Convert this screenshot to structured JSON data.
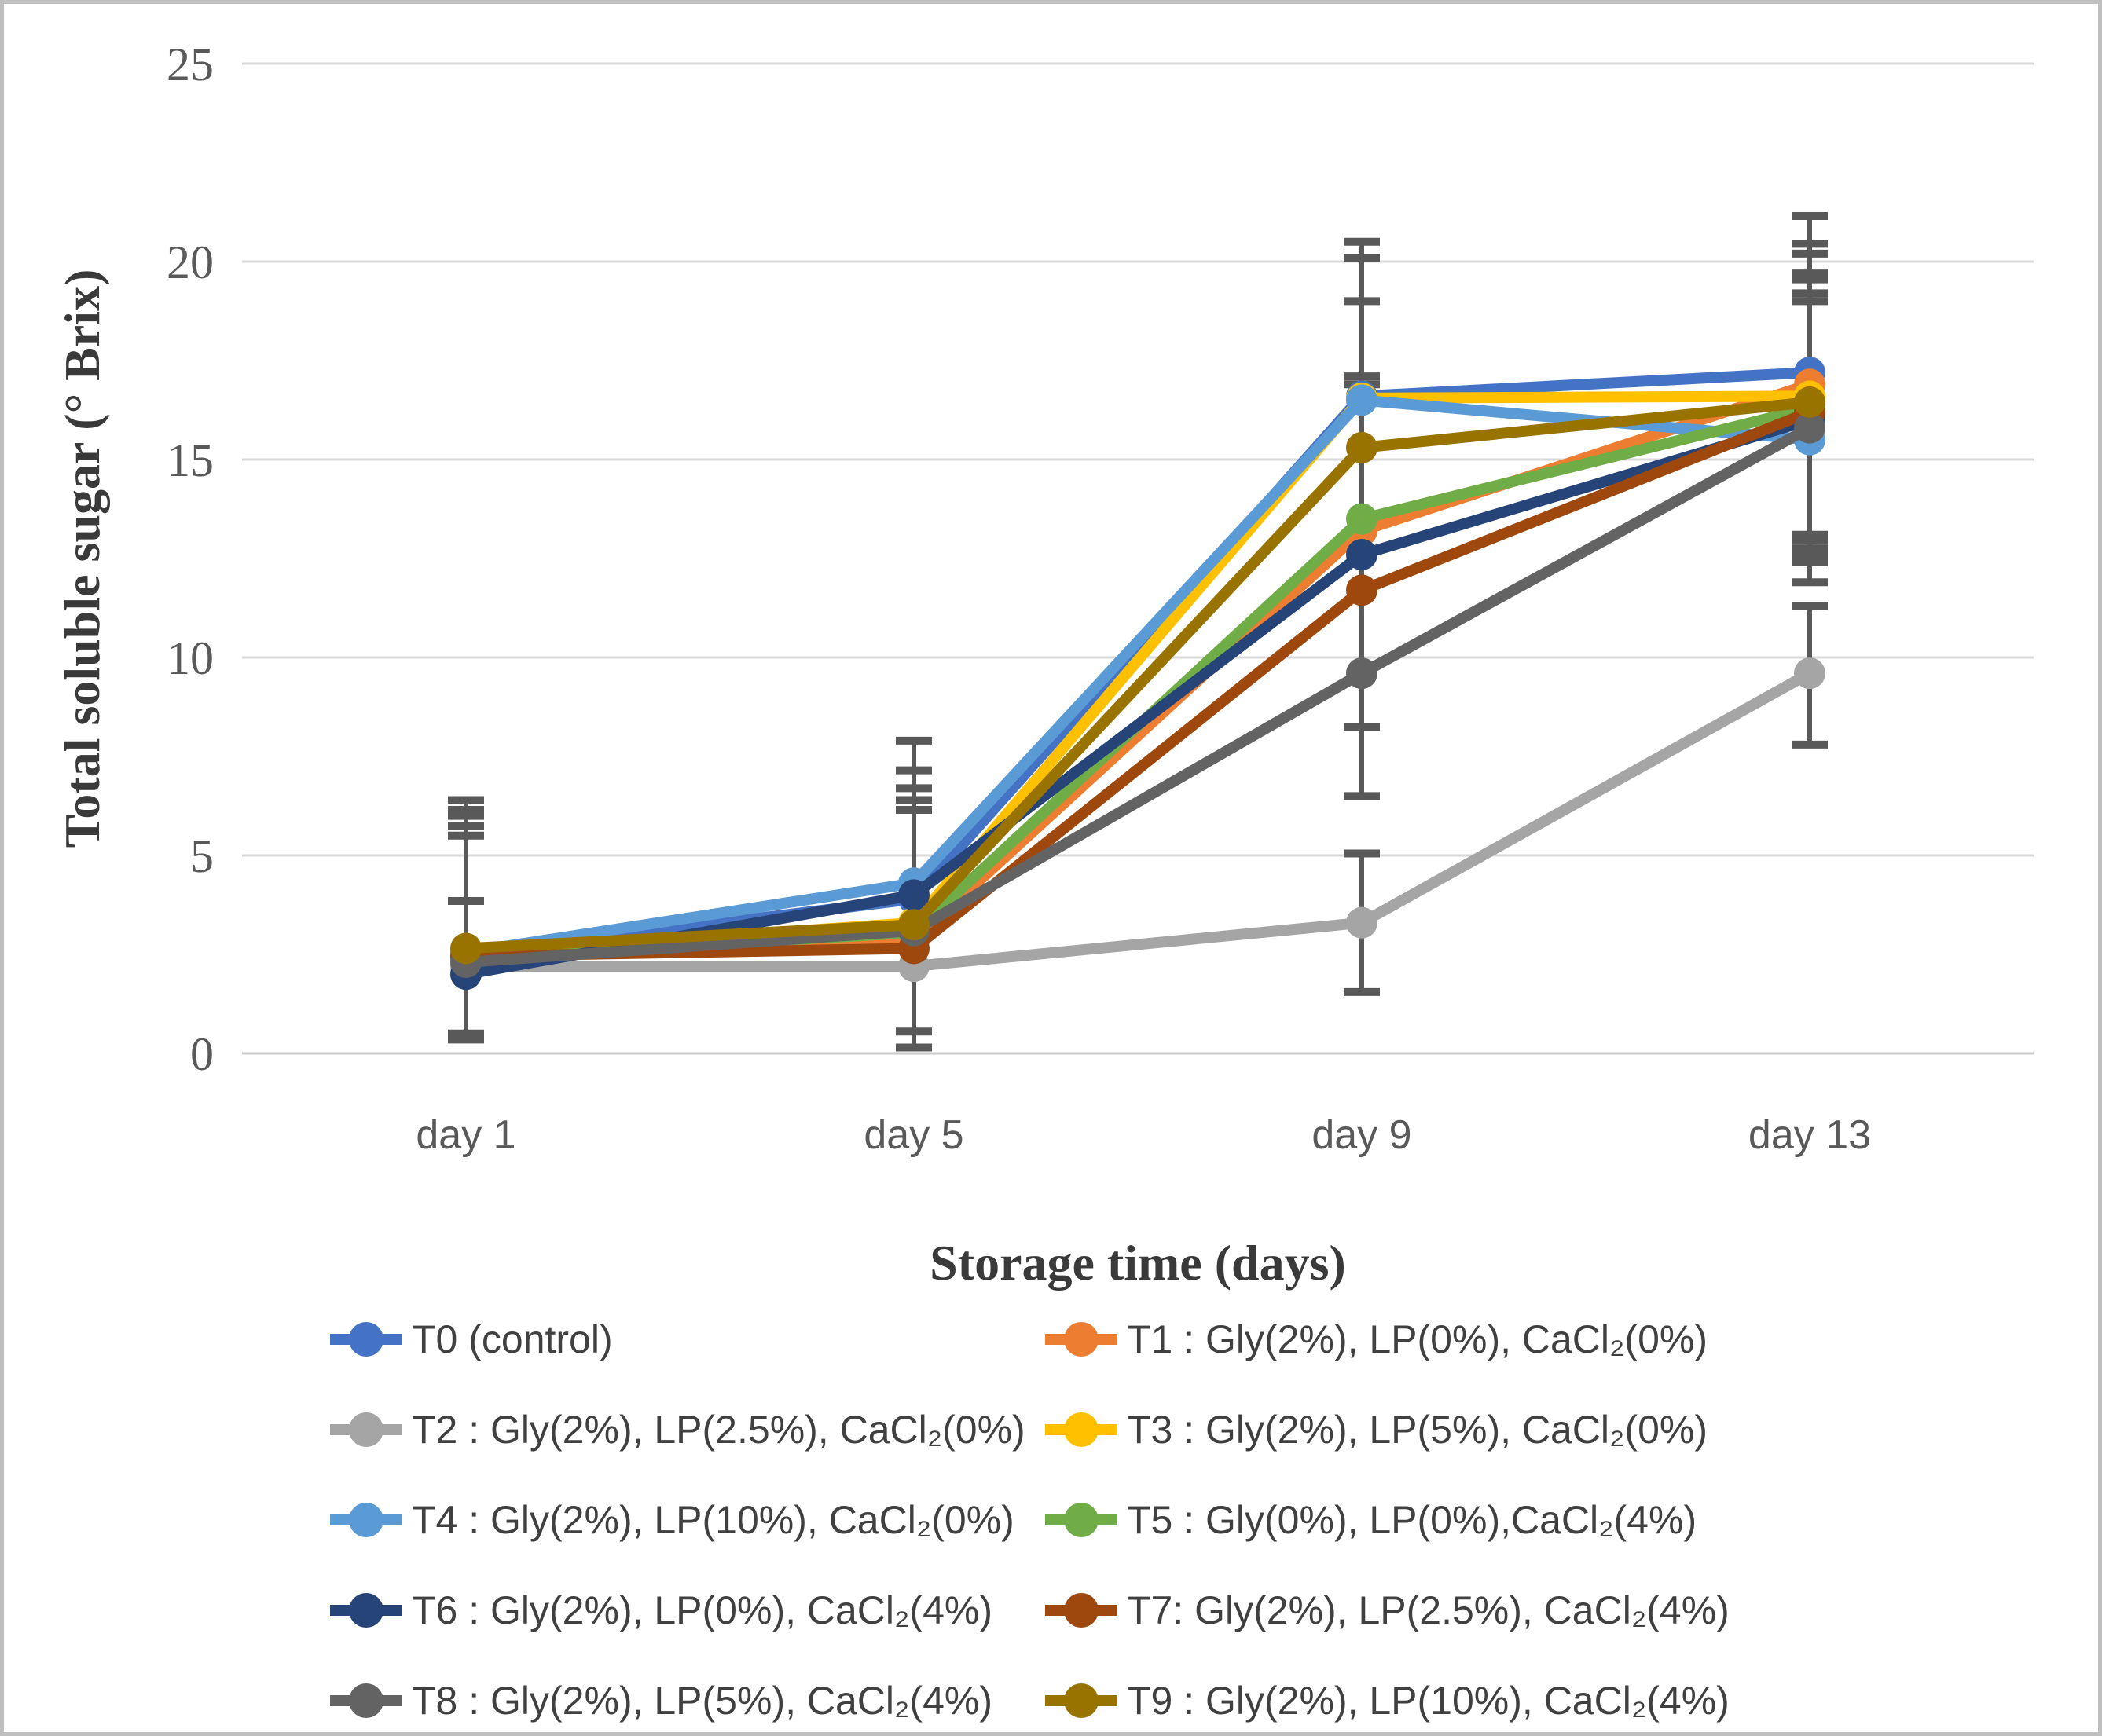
{
  "chart_data": {
    "type": "line",
    "title": "",
    "xlabel": "Storage time (days)",
    "ylabel": "Total soluble sugar (° Brix)",
    "categories": [
      "day 1",
      "day 5",
      "day 9",
      "day 13"
    ],
    "y_ticks": [
      0,
      5,
      10,
      15,
      20,
      25
    ],
    "ylim": [
      0,
      25
    ],
    "grid": true,
    "legend_position": "bottom-two-columns",
    "series": [
      {
        "name": "T0 (control)",
        "color": "#4472C4",
        "values": [
          2.5,
          3.9,
          16.6,
          17.2
        ]
      },
      {
        "name": "T1 : Gly(2%), LP(0%), CaCl₂(0%)",
        "color": "#ED7D31",
        "values": [
          2.45,
          2.85,
          13.2,
          16.9
        ]
      },
      {
        "name": "T2 : Gly(2%), LP(2.5%), CaCl₂(0%)",
        "color": "#A5A5A5",
        "values": [
          2.2,
          2.2,
          3.3,
          9.6
        ]
      },
      {
        "name": "T3 : Gly(2%), LP(5%), CaCl₂(0%)",
        "color": "#FFC000",
        "values": [
          2.5,
          3.3,
          16.55,
          16.6
        ]
      },
      {
        "name": "T4 : Gly(2%), LP(10%), CaCl₂(0%)",
        "color": "#5B9BD5",
        "values": [
          2.55,
          4.3,
          16.5,
          15.5
        ]
      },
      {
        "name": "T5 : Gly(0%), LP(0%),CaCl₂(4%)",
        "color": "#70AD47",
        "values": [
          2.4,
          3.05,
          13.5,
          16.3
        ]
      },
      {
        "name": "T6 : Gly(2%), LP(0%), CaCl₂(4%)",
        "color": "#264478",
        "values": [
          2.0,
          4.0,
          12.6,
          16.0
        ]
      },
      {
        "name": "T7: Gly(2%), LP(2.5%), CaCl₂(4%)",
        "color": "#9E480E",
        "values": [
          2.45,
          2.65,
          11.7,
          16.2
        ]
      },
      {
        "name": "T8 : Gly(2%), LP(5%), CaCl₂(4%)",
        "color": "#636363",
        "values": [
          2.3,
          3.1,
          9.6,
          15.8
        ]
      },
      {
        "name": "T9 : Gly(2%), LP(10%), CaCl₂(4%)",
        "color": "#997300",
        "values": [
          2.65,
          3.25,
          15.3,
          16.45
        ]
      }
    ],
    "error_bars": {
      "color": "#595959",
      "groups": [
        {
          "x_index": 0,
          "segments": [
            {
              "span": [
                0.35,
                6.4
              ],
              "caps": [
                6.4,
                6.15,
                6.0,
                5.75,
                5.5,
                3.85,
                0.5,
                0.35
              ]
            }
          ]
        },
        {
          "x_index": 1,
          "segments": [
            {
              "span": [
                0.15,
                7.9
              ],
              "caps": [
                7.9,
                7.15,
                6.7,
                6.4,
                6.15,
                0.55,
                0.15
              ]
            }
          ]
        },
        {
          "x_index": 2,
          "segments": [
            {
              "span": [
                6.5,
                20.5
              ],
              "caps": [
                20.5,
                20.1,
                19.0,
                17.1,
                16.9,
                8.25,
                6.5
              ]
            },
            {
              "span": [
                1.55,
                5.05
              ],
              "caps": [
                5.05,
                1.55
              ]
            }
          ]
        },
        {
          "x_index": 3,
          "segments": [
            {
              "span": [
                11.9,
                21.15
              ],
              "caps": [
                21.15,
                20.45,
                20.2,
                19.7,
                19.55,
                19.2,
                19.0,
                13.1,
                12.95,
                12.75,
                12.6,
                12.4,
                11.9
              ]
            },
            {
              "span": [
                7.8,
                11.3
              ],
              "caps": [
                11.3,
                7.8
              ]
            }
          ]
        }
      ]
    },
    "style": {
      "background": "#ffffff",
      "frame_border": "#bfbfbf",
      "gridline_color": "#d9d9d9",
      "axis_line_color": "#c9c9c9",
      "tick_label_color": "#595959",
      "axis_title_color": "#3a3a3a",
      "legend_text_color": "#404040",
      "error_bar_color": "#595959"
    }
  }
}
